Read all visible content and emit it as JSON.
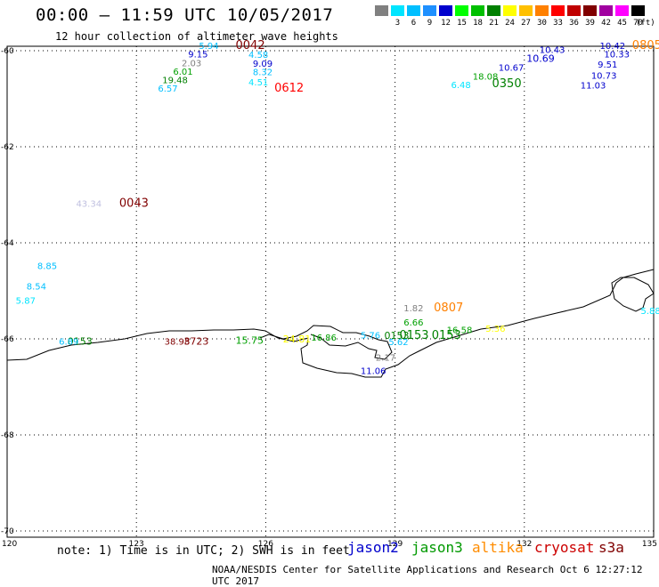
{
  "header": {
    "title": "00:00 – 11:59 UTC 10/05/2017",
    "subtitle": "12 hour collection of altimeter wave heights"
  },
  "legend": {
    "unit": "(ft)",
    "bins": [
      {
        "label": "",
        "color": "#808080"
      },
      {
        "label": "3",
        "color": "#00e5ff"
      },
      {
        "label": "6",
        "color": "#00bfff"
      },
      {
        "label": "9",
        "color": "#1e90ff"
      },
      {
        "label": "12",
        "color": "#0000cd"
      },
      {
        "label": "15",
        "color": "#00ff00"
      },
      {
        "label": "18",
        "color": "#00c000"
      },
      {
        "label": "21",
        "color": "#008000"
      },
      {
        "label": "24",
        "color": "#ffff00"
      },
      {
        "label": "27",
        "color": "#ffc000"
      },
      {
        "label": "30",
        "color": "#ff8000"
      },
      {
        "label": "33",
        "color": "#ff0000"
      },
      {
        "label": "36",
        "color": "#c00000"
      },
      {
        "label": "39",
        "color": "#800000"
      },
      {
        "label": "42",
        "color": "#a000a0"
      },
      {
        "label": "45",
        "color": "#ff00ff"
      },
      {
        "label": "70",
        "color": "#000000"
      }
    ]
  },
  "axes": {
    "lon_labels": [
      "120",
      "123",
      "126",
      "129",
      "132",
      "135"
    ],
    "lat_labels": [
      "-60",
      "-62",
      "-64",
      "-66",
      "-68",
      "-70"
    ]
  },
  "wave_heights": [
    {
      "v": "5.94",
      "c": "#00bfff",
      "lon": 124.45,
      "lat": -59.96
    },
    {
      "v": "9.15",
      "c": "#0000cd",
      "lon": 124.2,
      "lat": -60.14
    },
    {
      "v": "2.03",
      "c": "#808080",
      "lon": 124.05,
      "lat": -60.32
    },
    {
      "v": "6.01",
      "c": "#00a000",
      "lon": 123.85,
      "lat": -60.5
    },
    {
      "v": "19.48",
      "c": "#008000",
      "lon": 123.6,
      "lat": -60.68
    },
    {
      "v": "6.57",
      "c": "#00bfff",
      "lon": 123.5,
      "lat": -60.85
    },
    {
      "v": "4.58",
      "c": "#00bfff",
      "lon": 125.6,
      "lat": -60.15
    },
    {
      "v": "9.09",
      "c": "#0000cd",
      "lon": 125.7,
      "lat": -60.33
    },
    {
      "v": "8.32",
      "c": "#00bfff",
      "lon": 125.7,
      "lat": -60.51
    },
    {
      "v": "4.51",
      "c": "#00e5ff",
      "lon": 125.6,
      "lat": -60.72
    },
    {
      "v": "43.34",
      "c": "#c0c0e0",
      "lon": 121.6,
      "lat": -63.25
    },
    {
      "v": "8.85",
      "c": "#00bfff",
      "lon": 120.7,
      "lat": -64.55
    },
    {
      "v": "8.54",
      "c": "#00bfff",
      "lon": 120.45,
      "lat": -64.97
    },
    {
      "v": "5.87",
      "c": "#00e5ff",
      "lon": 120.2,
      "lat": -65.27
    },
    {
      "v": "6.89",
      "c": "#00bfff",
      "lon": 121.2,
      "lat": -66.12
    },
    {
      "v": "38.98",
      "c": "#800000",
      "lon": 123.65,
      "lat": -66.12
    },
    {
      "v": "16.86",
      "c": "#00a000",
      "lon": 127.05,
      "lat": -66.04
    },
    {
      "v": "5.76",
      "c": "#00bfff",
      "lon": 128.2,
      "lat": -65.99
    },
    {
      "v": "5.62",
      "c": "#00bfff",
      "lon": 128.85,
      "lat": -66.13
    },
    {
      "v": "2.17",
      "c": "#808080",
      "lon": 128.55,
      "lat": -66.45
    },
    {
      "v": "11.06",
      "c": "#0000cd",
      "lon": 128.2,
      "lat": -66.73
    },
    {
      "v": "1.82",
      "c": "#808080",
      "lon": 129.2,
      "lat": -65.43
    },
    {
      "v": "6.66",
      "c": "#00a000",
      "lon": 129.2,
      "lat": -65.72
    },
    {
      "v": "16.58",
      "c": "#00a000",
      "lon": 130.2,
      "lat": -65.88
    },
    {
      "v": "5.36",
      "c": "#ffff00",
      "lon": 131.1,
      "lat": -65.85
    },
    {
      "v": "5.88",
      "c": "#00e5ff",
      "lon": 134.7,
      "lat": -65.48
    },
    {
      "v": "6.48",
      "c": "#00e5ff",
      "lon": 130.3,
      "lat": -60.78
    },
    {
      "v": "18.08",
      "c": "#00a000",
      "lon": 130.8,
      "lat": -60.6
    },
    {
      "v": "10.67",
      "c": "#0000cd",
      "lon": 131.4,
      "lat": -60.42
    },
    {
      "v": "10.43",
      "c": "#0000cd",
      "lon": 132.35,
      "lat": -60.05
    },
    {
      "v": "10.42",
      "c": "#0000cd",
      "lon": 133.75,
      "lat": -59.96
    },
    {
      "v": "10.33",
      "c": "#0000cd",
      "lon": 133.85,
      "lat": -60.14
    },
    {
      "v": "9.51",
      "c": "#0000cd",
      "lon": 133.7,
      "lat": -60.35
    },
    {
      "v": "10.73",
      "c": "#0000cd",
      "lon": 133.55,
      "lat": -60.58
    },
    {
      "v": "11.03",
      "c": "#0000cd",
      "lon": 133.3,
      "lat": -60.79
    }
  ],
  "pass_times": [
    {
      "t": "0042",
      "c": "#800000",
      "lon": 125.3,
      "lat": -59.96
    },
    {
      "t": "0612",
      "c": "#ff0000",
      "lon": 126.2,
      "lat": -60.85
    },
    {
      "t": "0043",
      "c": "#800000",
      "lon": 122.6,
      "lat": -63.25
    },
    {
      "t": "0807",
      "c": "#ff8000",
      "lon": 129.9,
      "lat": -65.43
    },
    {
      "t": "0153",
      "c": "#008000",
      "lon": 129.1,
      "lat": -66.0
    },
    {
      "t": "0153",
      "c": "#008000",
      "lon": 129.85,
      "lat": -66.0
    },
    {
      "t": "0350",
      "c": "#008000",
      "lon": 131.25,
      "lat": -60.76
    },
    {
      "t": "0805",
      "c": "#ff8000",
      "lon": 134.5,
      "lat": -59.96
    }
  ],
  "crowded_labels": [
    {
      "v": "0153",
      "c": "#008000",
      "lon": 121.4,
      "lat": -66.12
    },
    {
      "v": "3723",
      "c": "#800000",
      "lon": 124.1,
      "lat": -66.12
    },
    {
      "v": "15.75",
      "c": "#00a000",
      "lon": 125.3,
      "lat": -66.1
    },
    {
      "v": "24.81",
      "c": "#ffff00",
      "lon": 126.4,
      "lat": -66.07
    },
    {
      "v": "0153",
      "c": "#008000",
      "lon": 128.75,
      "lat": -66.0
    },
    {
      "v": "10.69",
      "c": "#0000cd",
      "lon": 132.05,
      "lat": -60.23
    }
  ],
  "footer": {
    "note": "note:  1) Time is in UTC;  2) SWH is in feet",
    "satellites": [
      {
        "name": "jason2",
        "color": "#0000cc"
      },
      {
        "name": "jason3",
        "color": "#009900"
      },
      {
        "name": "altika",
        "color": "#ff8c00"
      },
      {
        "name": "cryosat",
        "color": "#cc0000"
      },
      {
        "name": "s3a",
        "color": "#800000"
      }
    ],
    "credit": "NOAA/NESDIS Center for Satellite Applications and Research    Oct  6 12:27:12 UTC 2017"
  }
}
